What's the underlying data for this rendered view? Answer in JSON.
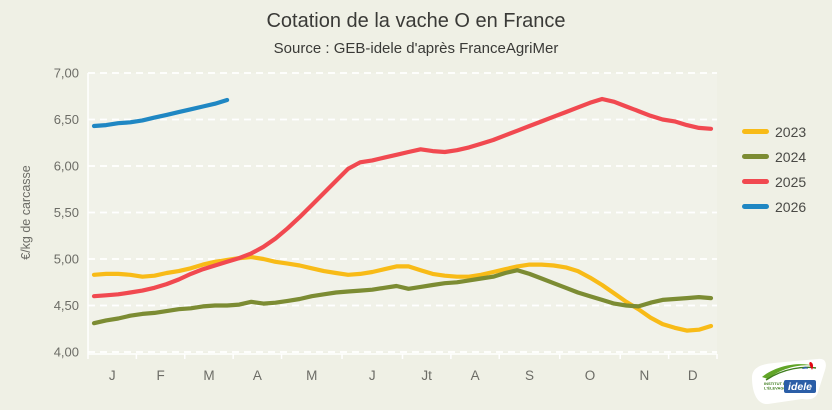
{
  "chart_data": {
    "type": "line",
    "title": "Cotation de la vache O en France",
    "subtitle": "Source : GEB-idele d'après FranceAgriMer",
    "ylabel": "€/kg de carcasse",
    "ylim": [
      4.0,
      7.0
    ],
    "ytick_values": [
      7.0,
      6.5,
      6.0,
      5.5,
      5.0,
      4.5,
      4.0
    ],
    "ytick_labels": [
      "7,00",
      "6,50",
      "6,00",
      "5,50",
      "5,00",
      "4,50",
      "4,00"
    ],
    "x_unit": "week",
    "month_labels": [
      "J",
      "F",
      "M",
      "A",
      "M",
      "J",
      "Jt",
      "A",
      "S",
      "O",
      "N",
      "D"
    ],
    "weeks_per_month": [
      4,
      4,
      4,
      4,
      5,
      5,
      4,
      4,
      5,
      5,
      4,
      4
    ],
    "grid": "horizontal-dashed-white",
    "legend_position": "right",
    "series": [
      {
        "name": "2023",
        "color": "#f8bb17",
        "values": [
          4.83,
          4.84,
          4.84,
          4.83,
          4.81,
          4.82,
          4.85,
          4.87,
          4.9,
          4.94,
          4.97,
          4.99,
          5.01,
          5.02,
          5.0,
          4.97,
          4.95,
          4.93,
          4.9,
          4.87,
          4.85,
          4.83,
          4.84,
          4.86,
          4.89,
          4.92,
          4.92,
          4.88,
          4.84,
          4.82,
          4.81,
          4.81,
          4.83,
          4.86,
          4.89,
          4.92,
          4.94,
          4.94,
          4.93,
          4.91,
          4.87,
          4.8,
          4.72,
          4.63,
          4.54,
          4.46,
          4.37,
          4.3,
          4.26,
          4.23,
          4.24,
          4.28
        ]
      },
      {
        "name": "2024",
        "color": "#7c8c33",
        "values": [
          4.31,
          4.34,
          4.36,
          4.39,
          4.41,
          4.42,
          4.44,
          4.46,
          4.47,
          4.49,
          4.5,
          4.5,
          4.51,
          4.54,
          4.52,
          4.53,
          4.55,
          4.57,
          4.6,
          4.62,
          4.64,
          4.65,
          4.66,
          4.67,
          4.69,
          4.71,
          4.68,
          4.7,
          4.72,
          4.74,
          4.75,
          4.77,
          4.79,
          4.81,
          4.85,
          4.88,
          4.84,
          4.79,
          4.74,
          4.69,
          4.64,
          4.6,
          4.56,
          4.52,
          4.5,
          4.49,
          4.53,
          4.56,
          4.57,
          4.58,
          4.59,
          4.58
        ]
      },
      {
        "name": "2025",
        "color": "#f14950",
        "values": [
          4.6,
          4.61,
          4.62,
          4.64,
          4.66,
          4.69,
          4.73,
          4.78,
          4.84,
          4.89,
          4.93,
          4.97,
          5.01,
          5.06,
          5.13,
          5.22,
          5.33,
          5.45,
          5.58,
          5.71,
          5.84,
          5.97,
          6.04,
          6.06,
          6.09,
          6.12,
          6.15,
          6.18,
          6.16,
          6.15,
          6.17,
          6.2,
          6.24,
          6.28,
          6.33,
          6.38,
          6.43,
          6.48,
          6.53,
          6.58,
          6.63,
          6.68,
          6.72,
          6.69,
          6.64,
          6.59,
          6.54,
          6.5,
          6.48,
          6.44,
          6.41,
          6.4
        ]
      },
      {
        "name": "2026",
        "color": "#1f87c3",
        "values": [
          6.43,
          6.44,
          6.46,
          6.47,
          6.49,
          6.52,
          6.55,
          6.58,
          6.61,
          6.64,
          6.67,
          6.71
        ]
      }
    ]
  },
  "logo": {
    "line1": "INSTITUT DE",
    "line2": "L'ÉLEVAGE",
    "brand": "idele"
  }
}
